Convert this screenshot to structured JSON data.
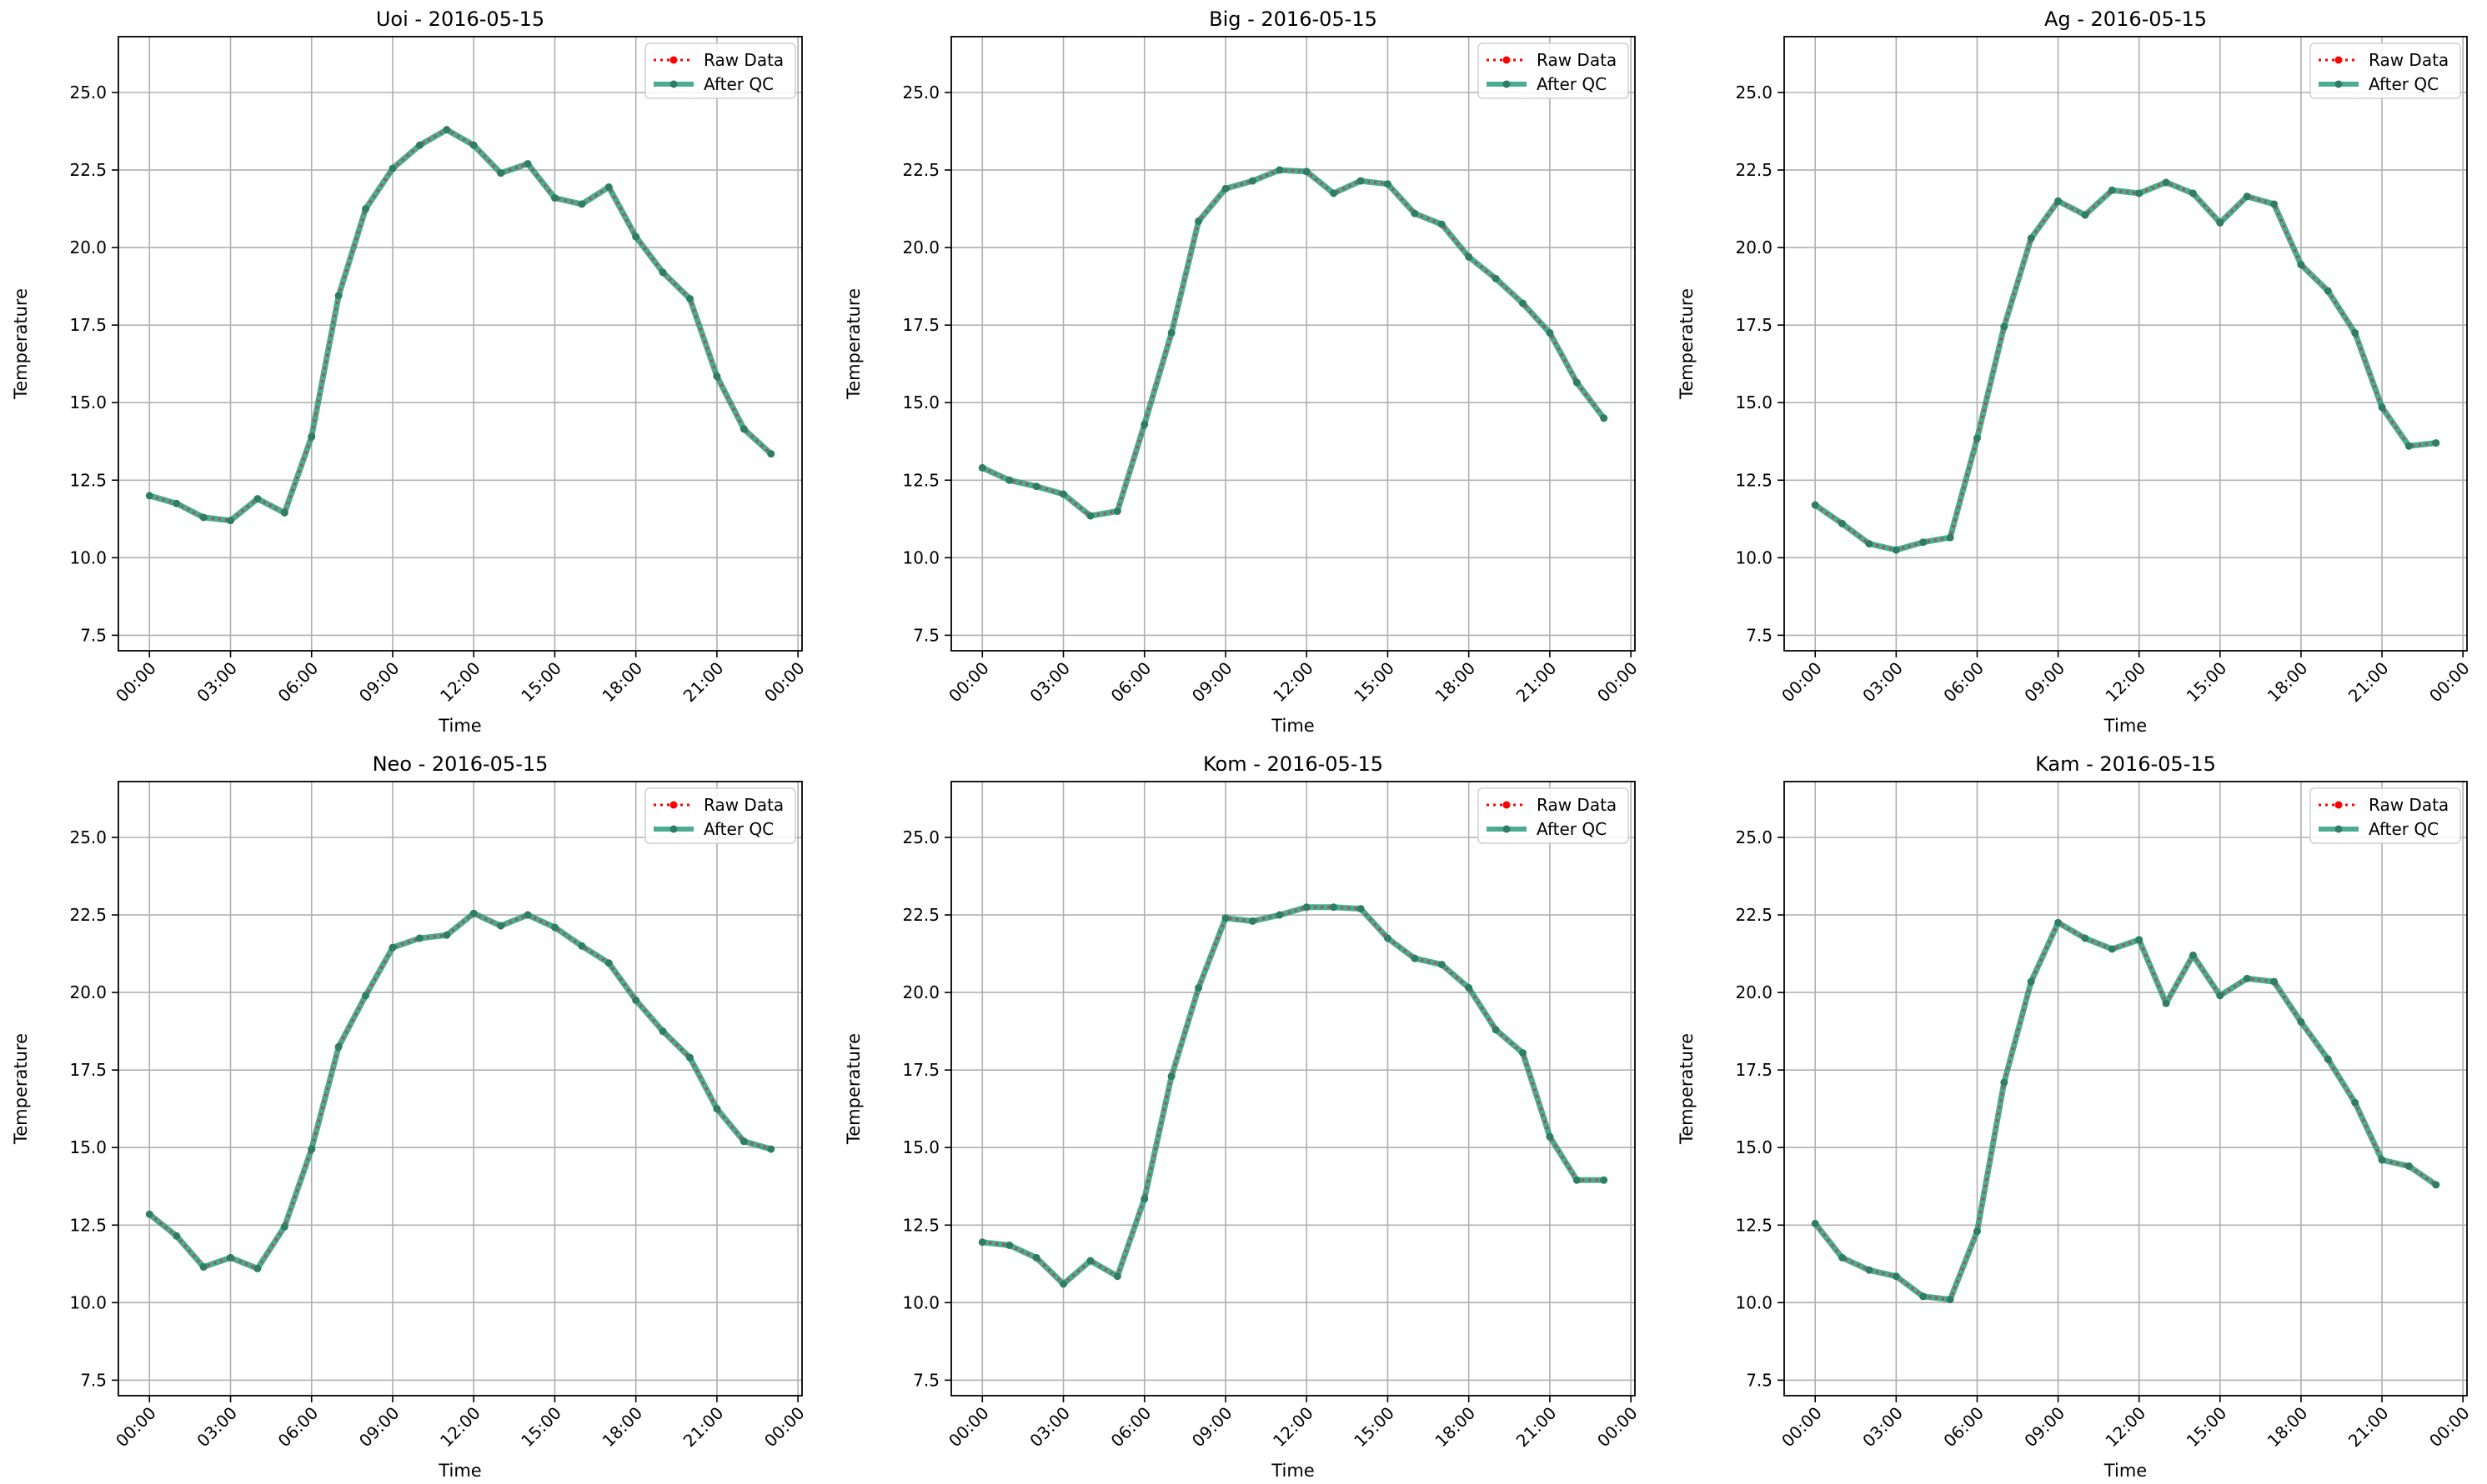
{
  "figure": {
    "background": "#ffffff"
  },
  "colors": {
    "raw": "#ff0000",
    "qc": "#2a9d7f",
    "qc_point": "#2e7d64",
    "grid": "#b0b0b0"
  },
  "legend_labels": {
    "raw": "Raw Data",
    "qc": "After QC"
  },
  "chart_data": [
    {
      "type": "line",
      "title": "Uoi - 2016-05-15",
      "xlabel": "Time",
      "ylabel": "Temperature",
      "x": [
        "00:00",
        "01:00",
        "02:00",
        "03:00",
        "04:00",
        "05:00",
        "06:00",
        "07:00",
        "08:00",
        "09:00",
        "10:00",
        "11:00",
        "12:00",
        "13:00",
        "14:00",
        "15:00",
        "16:00",
        "17:00",
        "18:00",
        "19:00",
        "20:00",
        "21:00",
        "22:00",
        "23:00"
      ],
      "x_ticks": [
        "00:00",
        "03:00",
        "06:00",
        "09:00",
        "12:00",
        "15:00",
        "18:00",
        "21:00",
        "00:00"
      ],
      "y_ticks": [
        7.5,
        10.0,
        12.5,
        15.0,
        17.5,
        20.0,
        22.5,
        25.0
      ],
      "ylim": [
        7.0,
        26.8
      ],
      "grid": true,
      "legend": "top-right",
      "series": [
        {
          "name": "Raw Data",
          "values": [
            12.0,
            11.75,
            11.3,
            11.2,
            11.9,
            11.45,
            13.9,
            18.45,
            21.25,
            22.55,
            23.3,
            23.8,
            23.3,
            22.4,
            22.7,
            21.6,
            21.4,
            21.95,
            20.35,
            19.2,
            18.35,
            15.85,
            14.15,
            13.35
          ]
        },
        {
          "name": "After QC",
          "values": [
            12.0,
            11.75,
            11.3,
            11.2,
            11.9,
            11.45,
            13.9,
            18.45,
            21.25,
            22.55,
            23.3,
            23.8,
            23.3,
            22.4,
            22.7,
            21.6,
            21.4,
            21.95,
            20.35,
            19.2,
            18.35,
            15.85,
            14.15,
            13.35
          ]
        }
      ]
    },
    {
      "type": "line",
      "title": "Big - 2016-05-15",
      "xlabel": "Time",
      "ylabel": "Temperature",
      "x": [
        "00:00",
        "01:00",
        "02:00",
        "03:00",
        "04:00",
        "05:00",
        "06:00",
        "07:00",
        "08:00",
        "09:00",
        "10:00",
        "11:00",
        "12:00",
        "13:00",
        "14:00",
        "15:00",
        "16:00",
        "17:00",
        "18:00",
        "19:00",
        "20:00",
        "21:00",
        "22:00",
        "23:00"
      ],
      "x_ticks": [
        "00:00",
        "03:00",
        "06:00",
        "09:00",
        "12:00",
        "15:00",
        "18:00",
        "21:00",
        "00:00"
      ],
      "y_ticks": [
        7.5,
        10.0,
        12.5,
        15.0,
        17.5,
        20.0,
        22.5,
        25.0
      ],
      "ylim": [
        7.0,
        26.8
      ],
      "grid": true,
      "legend": "top-right",
      "series": [
        {
          "name": "Raw Data",
          "values": [
            12.9,
            12.5,
            12.3,
            12.05,
            11.35,
            11.5,
            14.3,
            17.25,
            20.85,
            21.9,
            22.15,
            22.5,
            22.45,
            21.75,
            22.15,
            22.05,
            21.1,
            20.75,
            19.7,
            19.0,
            18.2,
            17.25,
            15.65,
            14.5
          ]
        },
        {
          "name": "After QC",
          "values": [
            12.9,
            12.5,
            12.3,
            12.05,
            11.35,
            11.5,
            14.3,
            17.25,
            20.85,
            21.9,
            22.15,
            22.5,
            22.45,
            21.75,
            22.15,
            22.05,
            21.1,
            20.75,
            19.7,
            19.0,
            18.2,
            17.25,
            15.65,
            14.5
          ]
        }
      ]
    },
    {
      "type": "line",
      "title": "Ag - 2016-05-15",
      "xlabel": "Time",
      "ylabel": "Temperature",
      "x": [
        "00:00",
        "01:00",
        "02:00",
        "03:00",
        "04:00",
        "05:00",
        "06:00",
        "07:00",
        "08:00",
        "09:00",
        "10:00",
        "11:00",
        "12:00",
        "13:00",
        "14:00",
        "15:00",
        "16:00",
        "17:00",
        "18:00",
        "19:00",
        "20:00",
        "21:00",
        "22:00",
        "23:00"
      ],
      "x_ticks": [
        "00:00",
        "03:00",
        "06:00",
        "09:00",
        "12:00",
        "15:00",
        "18:00",
        "21:00",
        "00:00"
      ],
      "y_ticks": [
        7.5,
        10.0,
        12.5,
        15.0,
        17.5,
        20.0,
        22.5,
        25.0
      ],
      "ylim": [
        7.0,
        26.8
      ],
      "grid": true,
      "legend": "top-right",
      "series": [
        {
          "name": "Raw Data",
          "values": [
            11.7,
            11.1,
            10.45,
            10.25,
            10.5,
            10.65,
            13.85,
            17.45,
            20.3,
            21.5,
            21.05,
            21.85,
            21.75,
            22.1,
            21.75,
            20.8,
            21.65,
            21.4,
            19.45,
            18.6,
            17.25,
            14.85,
            13.6,
            13.7
          ]
        },
        {
          "name": "After QC",
          "values": [
            11.7,
            11.1,
            10.45,
            10.25,
            10.5,
            10.65,
            13.85,
            17.45,
            20.3,
            21.5,
            21.05,
            21.85,
            21.75,
            22.1,
            21.75,
            20.8,
            21.65,
            21.4,
            19.45,
            18.6,
            17.25,
            14.85,
            13.6,
            13.7
          ]
        }
      ]
    },
    {
      "type": "line",
      "title": "Neo - 2016-05-15",
      "xlabel": "Time",
      "ylabel": "Temperature",
      "x": [
        "00:00",
        "01:00",
        "02:00",
        "03:00",
        "04:00",
        "05:00",
        "06:00",
        "07:00",
        "08:00",
        "09:00",
        "10:00",
        "11:00",
        "12:00",
        "13:00",
        "14:00",
        "15:00",
        "16:00",
        "17:00",
        "18:00",
        "19:00",
        "20:00",
        "21:00",
        "22:00",
        "23:00"
      ],
      "x_ticks": [
        "00:00",
        "03:00",
        "06:00",
        "09:00",
        "12:00",
        "15:00",
        "18:00",
        "21:00",
        "00:00"
      ],
      "y_ticks": [
        7.5,
        10.0,
        12.5,
        15.0,
        17.5,
        20.0,
        22.5,
        25.0
      ],
      "ylim": [
        7.0,
        26.8
      ],
      "grid": true,
      "legend": "top-right",
      "series": [
        {
          "name": "Raw Data",
          "values": [
            12.85,
            12.15,
            11.15,
            11.45,
            11.1,
            12.45,
            14.95,
            18.25,
            19.9,
            21.45,
            21.75,
            21.85,
            22.55,
            22.15,
            22.5,
            22.1,
            21.5,
            20.95,
            19.75,
            18.75,
            17.9,
            16.25,
            15.2,
            14.95
          ]
        },
        {
          "name": "After QC",
          "values": [
            12.85,
            12.15,
            11.15,
            11.45,
            11.1,
            12.45,
            14.95,
            18.25,
            19.9,
            21.45,
            21.75,
            21.85,
            22.55,
            22.15,
            22.5,
            22.1,
            21.5,
            20.95,
            19.75,
            18.75,
            17.9,
            16.25,
            15.2,
            14.95
          ]
        }
      ]
    },
    {
      "type": "line",
      "title": "Kom - 2016-05-15",
      "xlabel": "Time",
      "ylabel": "Temperature",
      "x": [
        "00:00",
        "01:00",
        "02:00",
        "03:00",
        "04:00",
        "05:00",
        "06:00",
        "07:00",
        "08:00",
        "09:00",
        "10:00",
        "11:00",
        "12:00",
        "13:00",
        "14:00",
        "15:00",
        "16:00",
        "17:00",
        "18:00",
        "19:00",
        "20:00",
        "21:00",
        "22:00",
        "23:00"
      ],
      "x_ticks": [
        "00:00",
        "03:00",
        "06:00",
        "09:00",
        "12:00",
        "15:00",
        "18:00",
        "21:00",
        "00:00"
      ],
      "y_ticks": [
        7.5,
        10.0,
        12.5,
        15.0,
        17.5,
        20.0,
        22.5,
        25.0
      ],
      "ylim": [
        7.0,
        26.8
      ],
      "grid": true,
      "legend": "top-right",
      "series": [
        {
          "name": "Raw Data",
          "values": [
            11.95,
            11.85,
            11.45,
            10.6,
            11.35,
            10.85,
            13.35,
            17.3,
            20.15,
            22.4,
            22.3,
            22.5,
            22.75,
            22.75,
            22.7,
            21.75,
            21.1,
            20.9,
            20.15,
            18.8,
            18.05,
            15.35,
            13.95,
            13.95
          ]
        },
        {
          "name": "After QC",
          "values": [
            11.95,
            11.85,
            11.45,
            10.6,
            11.35,
            10.85,
            13.35,
            17.3,
            20.15,
            22.4,
            22.3,
            22.5,
            22.75,
            22.75,
            22.7,
            21.75,
            21.1,
            20.9,
            20.15,
            18.8,
            18.05,
            15.35,
            13.95,
            13.95
          ]
        }
      ]
    },
    {
      "type": "line",
      "title": "Kam - 2016-05-15",
      "xlabel": "Time",
      "ylabel": "Temperature",
      "x": [
        "00:00",
        "01:00",
        "02:00",
        "03:00",
        "04:00",
        "05:00",
        "06:00",
        "07:00",
        "08:00",
        "09:00",
        "10:00",
        "11:00",
        "12:00",
        "13:00",
        "14:00",
        "15:00",
        "16:00",
        "17:00",
        "18:00",
        "19:00",
        "20:00",
        "21:00",
        "22:00",
        "23:00"
      ],
      "x_ticks": [
        "00:00",
        "03:00",
        "06:00",
        "09:00",
        "12:00",
        "15:00",
        "18:00",
        "21:00",
        "00:00"
      ],
      "y_ticks": [
        7.5,
        10.0,
        12.5,
        15.0,
        17.5,
        20.0,
        22.5,
        25.0
      ],
      "ylim": [
        7.0,
        26.8
      ],
      "grid": true,
      "legend": "top-right",
      "series": [
        {
          "name": "Raw Data",
          "values": [
            12.55,
            11.45,
            11.05,
            10.85,
            10.2,
            10.1,
            12.3,
            17.1,
            20.35,
            22.25,
            21.75,
            21.4,
            21.7,
            19.65,
            21.2,
            19.9,
            20.45,
            20.35,
            19.05,
            17.85,
            16.45,
            14.6,
            14.4,
            13.8
          ]
        },
        {
          "name": "After QC",
          "values": [
            12.55,
            11.45,
            11.05,
            10.85,
            10.2,
            10.1,
            12.3,
            17.1,
            20.35,
            22.25,
            21.75,
            21.4,
            21.7,
            19.65,
            21.2,
            19.9,
            20.45,
            20.35,
            19.05,
            17.85,
            16.45,
            14.6,
            14.4,
            13.8
          ]
        }
      ]
    }
  ]
}
